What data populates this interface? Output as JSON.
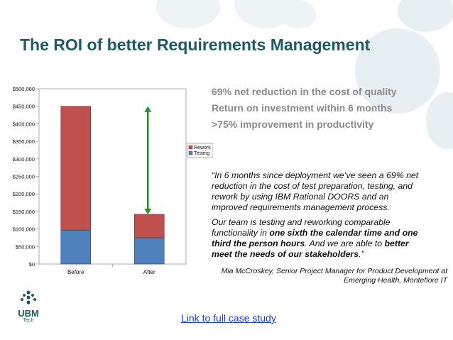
{
  "slide": {
    "title": "The ROI of better Requirements Management",
    "bullets": [
      "69% net reduction in the cost of quality",
      "Return on investment within 6 months",
      ">75% improvement in productivity"
    ],
    "quote": {
      "p1": "“In 6 months since deployment we’ve seen a 69% net reduction in the cost of test preparation, testing, and rework by using IBM Rational DOORS and an improved requirements management process.",
      "p2_pre": "Our team is testing and reworking comparable functionality in ",
      "p2_bold1": "one sixth the calendar time and one third the person hours",
      "p2_mid": ". And we are able to ",
      "p2_bold2": "better meet the needs of our stakeholders",
      "p2_end": ".”"
    },
    "attribution": "Mia McCroskey, Senior Project Manager for Product Development at Emerging Health, Montefiore IT",
    "link_text": "Link to full case study",
    "logo": {
      "text": "UBM",
      "sub": "Tech"
    }
  },
  "colors": {
    "title": "#1d5a63",
    "testing": "#4f81bd",
    "rework": "#c0504d",
    "arrow": "#2e8b2e",
    "bubble": "#e8eff3"
  },
  "chart_data": {
    "type": "bar",
    "stacked": true,
    "categories": [
      "Before",
      "After"
    ],
    "series": [
      {
        "name": "Testing",
        "values": [
          97000,
          75000
        ]
      },
      {
        "name": "Rework",
        "values": [
          353000,
          67000
        ]
      }
    ],
    "ylim": [
      0,
      500000
    ],
    "yticks": [
      0,
      50000,
      100000,
      150000,
      200000,
      250000,
      300000,
      350000,
      400000,
      450000,
      500000
    ],
    "ytick_labels": [
      "$0",
      "$50,000",
      "$100,000",
      "$150,000",
      "$200,000",
      "$250,000",
      "$300,000",
      "$350,000",
      "$400,000",
      "$450,000",
      "$500,000"
    ],
    "legend": [
      "Rework",
      "Testing"
    ],
    "legend_position": "right",
    "annotation": {
      "type": "double-arrow",
      "from": 142000,
      "to": 450000,
      "at": "After"
    }
  }
}
